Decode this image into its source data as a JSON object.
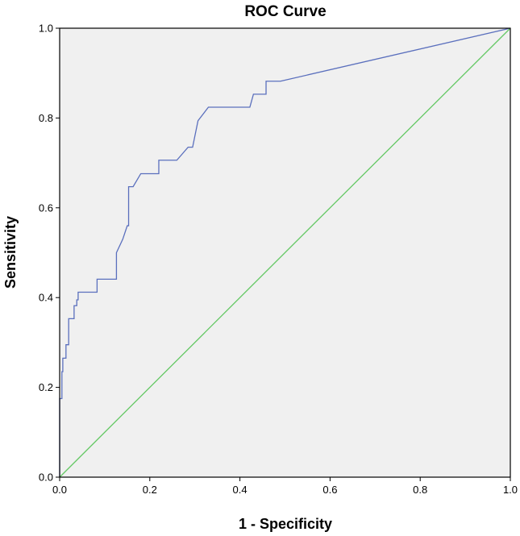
{
  "chart_data": {
    "type": "line",
    "title": "ROC Curve",
    "xlabel": "1 - Specificity",
    "ylabel": "Sensitivity",
    "xlim": [
      0,
      1
    ],
    "ylim": [
      0,
      1
    ],
    "x_ticks": [
      "0.0",
      "0.2",
      "0.4",
      "0.6",
      "0.8",
      "1.0"
    ],
    "y_ticks": [
      "0.0",
      "0.2",
      "0.4",
      "0.6",
      "0.8",
      "1.0"
    ],
    "grid": false,
    "legend": "none",
    "background_color": "#f0f0f0",
    "series": [
      {
        "color": "#5a6fbd",
        "points": [
          [
            0.0,
            0.0
          ],
          [
            0.0,
            0.175
          ],
          [
            0.005,
            0.175
          ],
          [
            0.005,
            0.235
          ],
          [
            0.007,
            0.235
          ],
          [
            0.007,
            0.265
          ],
          [
            0.014,
            0.265
          ],
          [
            0.014,
            0.295
          ],
          [
            0.02,
            0.295
          ],
          [
            0.02,
            0.353
          ],
          [
            0.032,
            0.353
          ],
          [
            0.032,
            0.382
          ],
          [
            0.038,
            0.382
          ],
          [
            0.038,
            0.395
          ],
          [
            0.041,
            0.395
          ],
          [
            0.041,
            0.412
          ],
          [
            0.083,
            0.412
          ],
          [
            0.083,
            0.441
          ],
          [
            0.126,
            0.441
          ],
          [
            0.126,
            0.5
          ],
          [
            0.14,
            0.53
          ],
          [
            0.15,
            0.56
          ],
          [
            0.153,
            0.56
          ],
          [
            0.153,
            0.647
          ],
          [
            0.163,
            0.647
          ],
          [
            0.18,
            0.676
          ],
          [
            0.22,
            0.676
          ],
          [
            0.22,
            0.706
          ],
          [
            0.26,
            0.706
          ],
          [
            0.285,
            0.735
          ],
          [
            0.295,
            0.735
          ],
          [
            0.307,
            0.794
          ],
          [
            0.33,
            0.824
          ],
          [
            0.422,
            0.824
          ],
          [
            0.43,
            0.853
          ],
          [
            0.458,
            0.853
          ],
          [
            0.458,
            0.882
          ],
          [
            0.49,
            0.882
          ],
          [
            1.0,
            1.0
          ]
        ]
      },
      {
        "color": "#64c864",
        "points": [
          [
            0,
            0
          ],
          [
            1,
            1
          ]
        ]
      }
    ]
  }
}
